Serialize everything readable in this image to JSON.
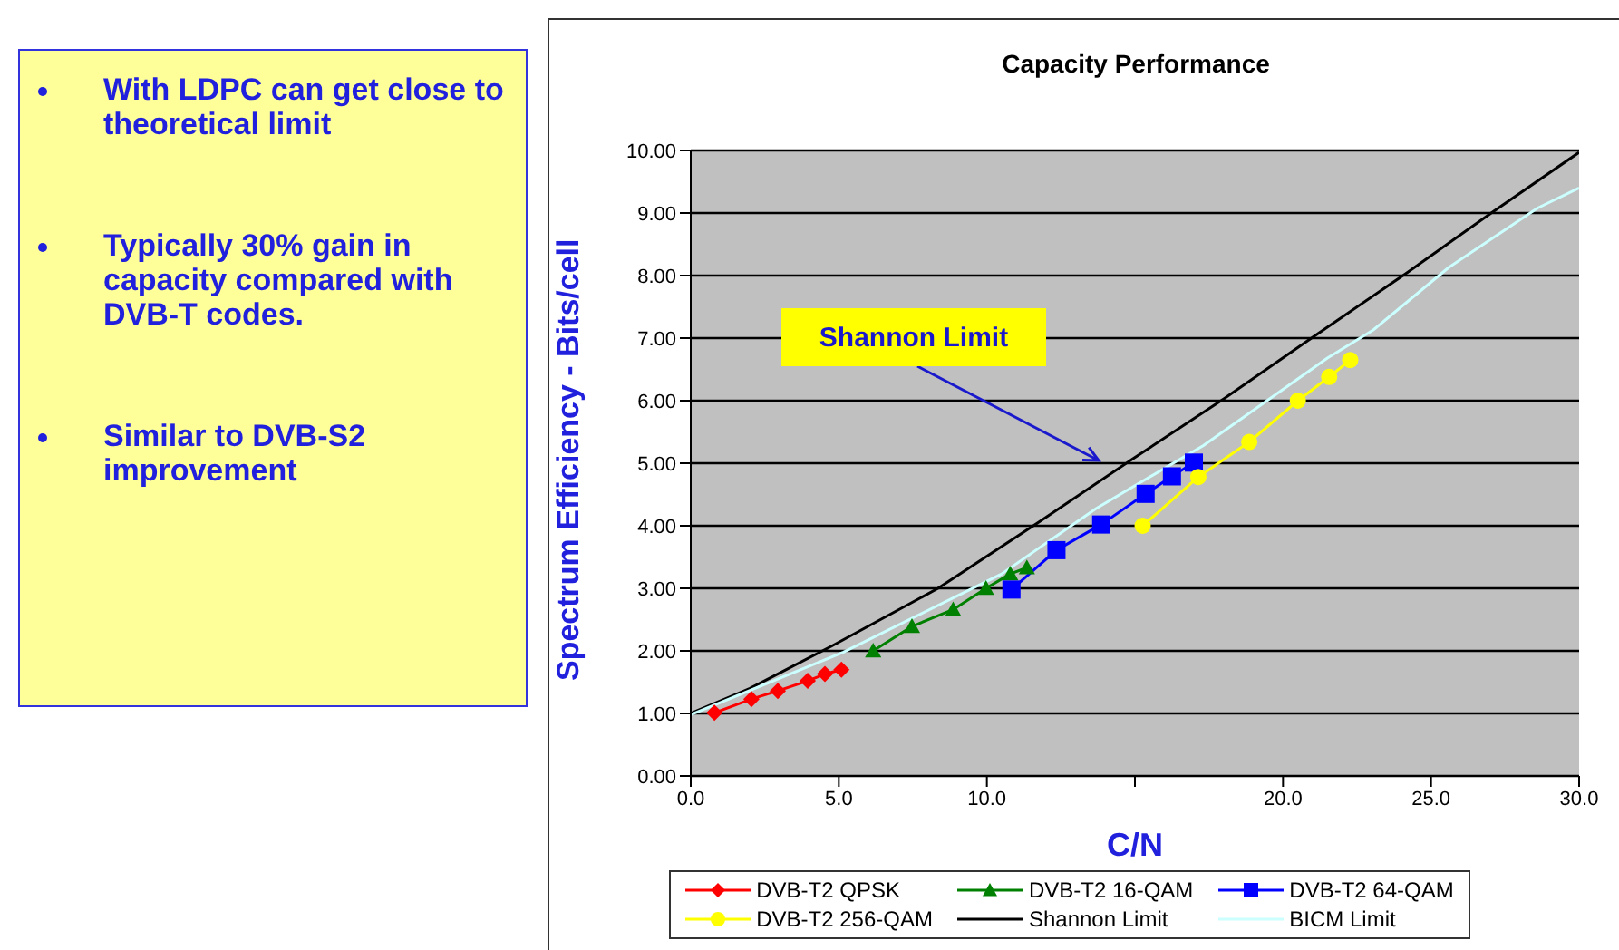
{
  "chart_data": {
    "type": "line",
    "title": "Capacity Performance",
    "xlabel": "C/N",
    "ylabel": "Spectrum Efficiency - Bits/cell",
    "xlim": [
      0,
      30
    ],
    "xticks": [
      {
        "value": 0,
        "label": "0.0"
      },
      {
        "value": 5,
        "label": "5.0"
      },
      {
        "value": 10,
        "label": "10.0"
      },
      {
        "value": 15,
        "label": null
      },
      {
        "value": 20,
        "label": "20.0"
      },
      {
        "value": 25,
        "label": "25.0"
      },
      {
        "value": 30,
        "label": "30.0"
      }
    ],
    "ylim": [
      0,
      10
    ],
    "yticks": [
      {
        "value": 0,
        "label": "0.00"
      },
      {
        "value": 1,
        "label": "1.00"
      },
      {
        "value": 2,
        "label": "2.00"
      },
      {
        "value": 3,
        "label": "3.00"
      },
      {
        "value": 4,
        "label": "4.00"
      },
      {
        "value": 5,
        "label": "5.00"
      },
      {
        "value": 6,
        "label": "6.00"
      },
      {
        "value": 7,
        "label": "7.00"
      },
      {
        "value": 8,
        "label": "8.00"
      },
      {
        "value": 9,
        "label": "9.00"
      },
      {
        "value": 10,
        "label": "10.00"
      }
    ],
    "grid": "y",
    "legend": "bottom",
    "series": [
      {
        "name": "DVB-T2 QPSK",
        "color": "#ff0000",
        "marker": "diamond",
        "x": [
          0.8,
          2.05,
          2.94,
          3.95,
          4.53,
          5.09
        ],
        "values": [
          1.01,
          1.23,
          1.36,
          1.52,
          1.63,
          1.7
        ]
      },
      {
        "name": "DVB-T2 16-QAM",
        "color": "#008000",
        "marker": "triangle",
        "x": [
          6.16,
          7.47,
          8.86,
          9.97,
          10.79,
          11.35
        ],
        "values": [
          2.0,
          2.39,
          2.66,
          3.0,
          3.23,
          3.33
        ]
      },
      {
        "name": "DVB-T2 64-QAM",
        "color": "#0000ff",
        "marker": "square",
        "x": [
          10.83,
          12.35,
          13.86,
          15.36,
          16.25,
          16.99
        ],
        "values": [
          2.98,
          3.61,
          4.02,
          4.51,
          4.79,
          5.01
        ]
      },
      {
        "name": "DVB-T2 256-QAM",
        "color": "#ffff00",
        "marker": "circle",
        "x": [
          15.26,
          17.14,
          18.86,
          20.5,
          21.56,
          22.27
        ],
        "values": [
          4.0,
          4.78,
          5.34,
          6.0,
          6.38,
          6.65
        ]
      },
      {
        "name": "Shannon Limit",
        "color": "#000000",
        "marker": "none",
        "x": [
          0,
          2,
          4.77,
          8.35,
          11.73,
          14.9,
          18.0,
          20.96,
          24.14,
          27.12,
          30
        ],
        "values": [
          1.0,
          1.4,
          2.08,
          3.0,
          4.05,
          5.06,
          6.03,
          7.0,
          8.03,
          9.03,
          9.97
        ]
      },
      {
        "name": "BICM Limit",
        "color": "#ccffff",
        "marker": "none",
        "x": [
          0,
          5.16,
          10.5,
          13.7,
          17.3,
          21.5,
          23.05,
          25.6,
          28.6,
          30
        ],
        "values": [
          0.98,
          1.98,
          3.23,
          4.28,
          5.28,
          6.68,
          7.13,
          8.13,
          9.08,
          9.4
        ]
      }
    ],
    "annotations": [
      "Shannon Limit",
      "With LDPC can get close to theoretical limit",
      "Typically 30% gain in capacity compared with DVB-T codes.",
      "Similar to DVB-S2 improvement"
    ]
  }
}
